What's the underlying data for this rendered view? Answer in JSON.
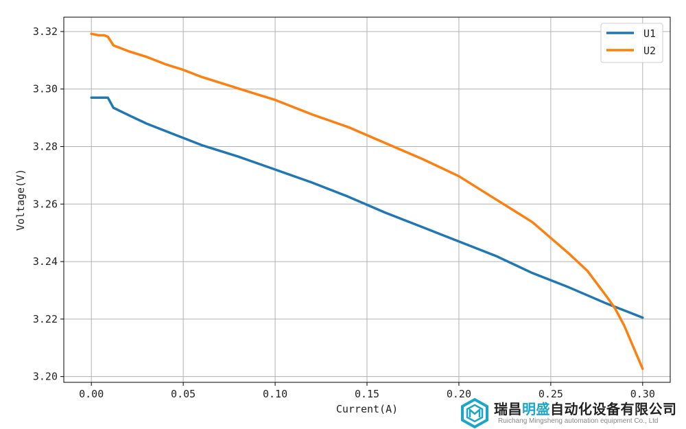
{
  "chart_data": {
    "type": "line",
    "title": "",
    "xlabel": "Current(A)",
    "ylabel": "Voltage(V)",
    "xlim": [
      -0.015,
      0.315
    ],
    "ylim": [
      3.198,
      3.325
    ],
    "xticks": [
      0.0,
      0.05,
      0.1,
      0.15,
      0.2,
      0.25,
      0.3
    ],
    "xtick_labels": [
      "0.00",
      "0.05",
      "0.10",
      "0.15",
      "0.20",
      "0.25",
      "0.30"
    ],
    "yticks": [
      3.2,
      3.22,
      3.24,
      3.26,
      3.28,
      3.3,
      3.32
    ],
    "ytick_labels": [
      "3.20",
      "3.22",
      "3.24",
      "3.26",
      "3.28",
      "3.30",
      "3.32"
    ],
    "grid": true,
    "legend_position": "top-right",
    "series": [
      {
        "name": "U1",
        "color": "#1f77b4",
        "x": [
          0.0,
          0.005,
          0.009,
          0.012,
          0.02,
          0.03,
          0.04,
          0.05,
          0.06,
          0.08,
          0.1,
          0.12,
          0.14,
          0.16,
          0.18,
          0.2,
          0.22,
          0.24,
          0.26,
          0.28,
          0.29,
          0.3
        ],
        "y": [
          3.297,
          3.297,
          3.297,
          3.2935,
          3.291,
          3.288,
          3.2855,
          3.283,
          3.2805,
          3.2765,
          3.272,
          3.2675,
          3.2625,
          3.257,
          3.252,
          3.247,
          3.242,
          3.236,
          3.231,
          3.2255,
          3.223,
          3.2205
        ]
      },
      {
        "name": "U2",
        "color": "#ff7f0e",
        "x": [
          0.0,
          0.004,
          0.007,
          0.009,
          0.012,
          0.02,
          0.03,
          0.04,
          0.05,
          0.06,
          0.08,
          0.1,
          0.12,
          0.14,
          0.16,
          0.18,
          0.2,
          0.22,
          0.23,
          0.24,
          0.25,
          0.26,
          0.27,
          0.28,
          0.285,
          0.29,
          0.295,
          0.3
        ],
        "y": [
          3.3192,
          3.3187,
          3.3187,
          3.3182,
          3.3152,
          3.3132,
          3.3112,
          3.3087,
          3.3067,
          3.3042,
          3.3002,
          3.2962,
          3.2912,
          3.2867,
          3.2812,
          3.2757,
          3.2697,
          3.2617,
          3.2577,
          3.2537,
          3.2482,
          3.2427,
          3.2367,
          3.2282,
          3.2237,
          3.2177,
          3.2102,
          3.2027
        ]
      }
    ]
  },
  "watermark": {
    "name_prefix": "瑞昌",
    "name_highlight": "明盛",
    "name_suffix": "自动化设备有限公司",
    "subtitle": "Ruichang Mingsheng automation equipment Co., Ltd"
  }
}
